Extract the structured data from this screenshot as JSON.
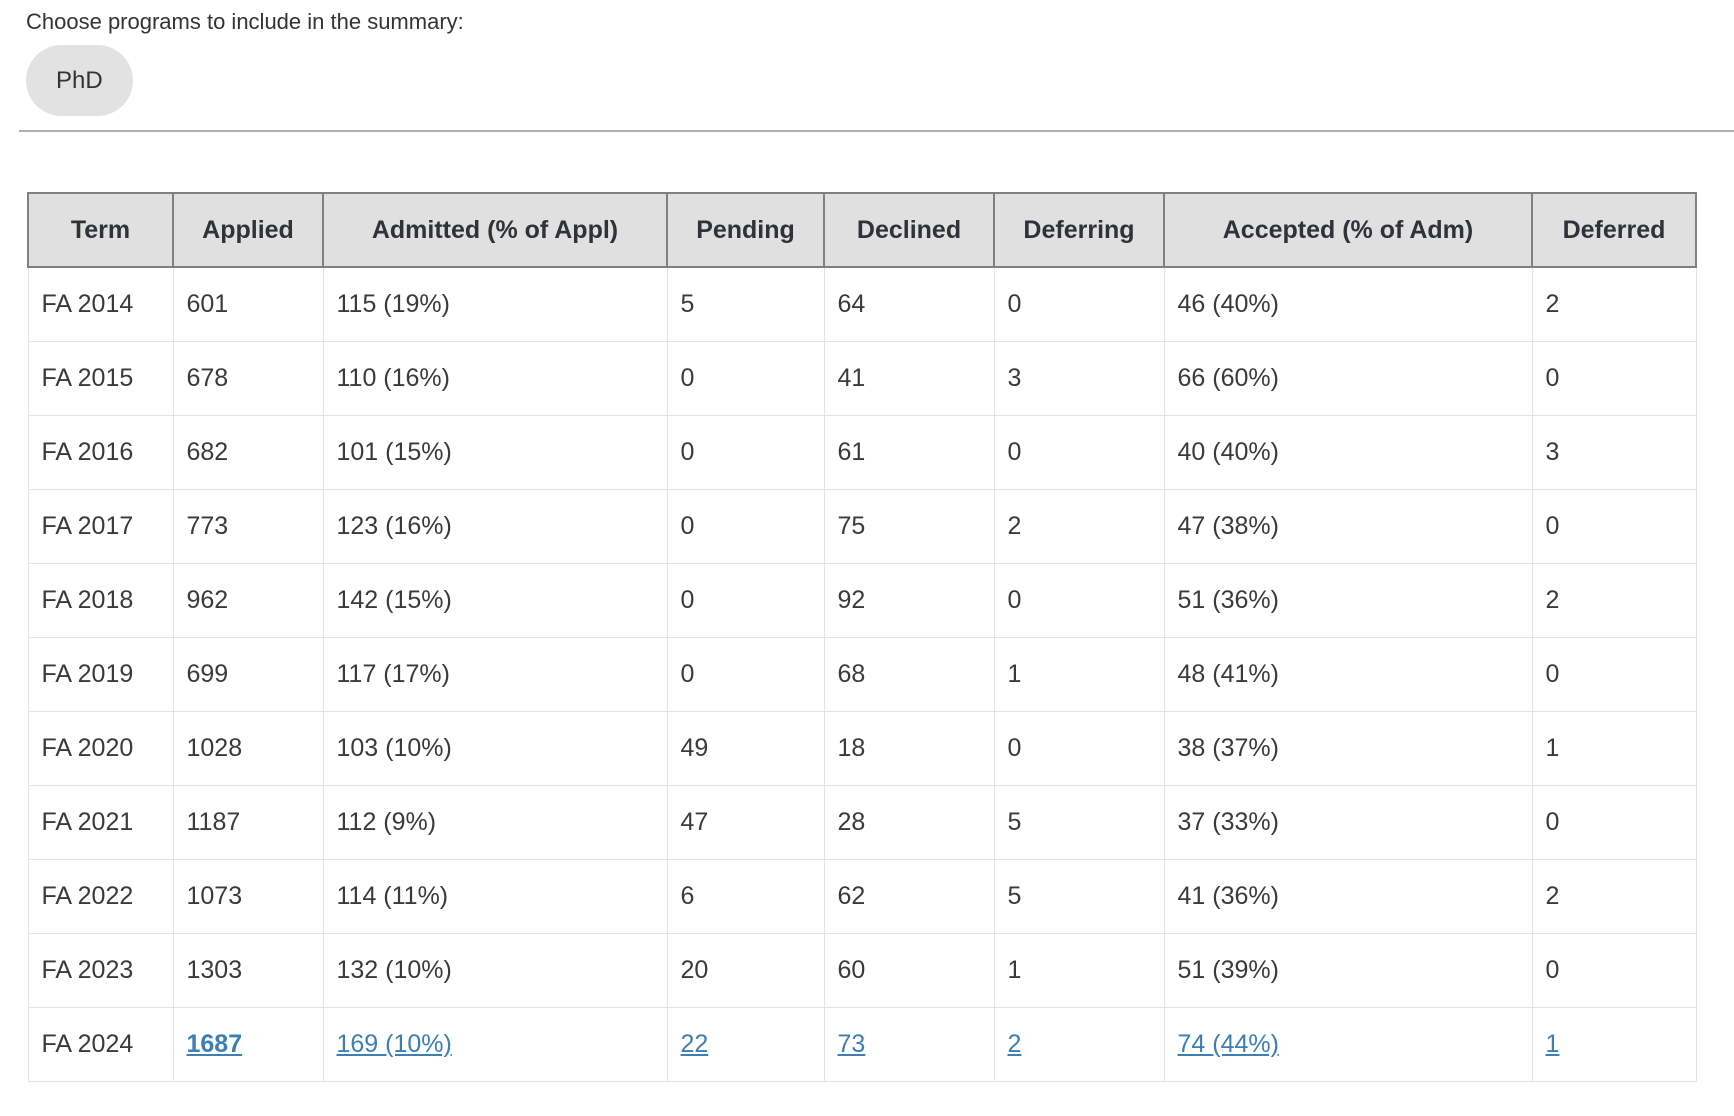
{
  "chooser": {
    "label": "Choose programs to include in the summary:",
    "pills": [
      {
        "label": "PhD",
        "selected": true
      }
    ]
  },
  "colors": {
    "link": "#3d7eb3",
    "header_bg": "#e0e0e0",
    "pill_bg": "#e2e2e2",
    "header_border": "#808080",
    "cell_border": "#e4e4e4"
  },
  "table": {
    "columns": [
      "Term",
      "Applied",
      "Admitted (% of Appl)",
      "Pending",
      "Declined",
      "Deferring",
      "Accepted (% of Adm)",
      "Deferred"
    ],
    "rows": [
      {
        "term": "FA 2014",
        "applied": "601",
        "admitted": "115 (19%)",
        "pending": "5",
        "declined": "64",
        "deferring": "0",
        "accepted": "46 (40%)",
        "deferred": "2",
        "links": false
      },
      {
        "term": "FA 2015",
        "applied": "678",
        "admitted": "110 (16%)",
        "pending": "0",
        "declined": "41",
        "deferring": "3",
        "accepted": "66 (60%)",
        "deferred": "0",
        "links": false
      },
      {
        "term": "FA 2016",
        "applied": "682",
        "admitted": "101 (15%)",
        "pending": "0",
        "declined": "61",
        "deferring": "0",
        "accepted": "40 (40%)",
        "deferred": "3",
        "links": false
      },
      {
        "term": "FA 2017",
        "applied": "773",
        "admitted": "123 (16%)",
        "pending": "0",
        "declined": "75",
        "deferring": "2",
        "accepted": "47 (38%)",
        "deferred": "0",
        "links": false
      },
      {
        "term": "FA 2018",
        "applied": "962",
        "admitted": "142 (15%)",
        "pending": "0",
        "declined": "92",
        "deferring": "0",
        "accepted": "51 (36%)",
        "deferred": "2",
        "links": false
      },
      {
        "term": "FA 2019",
        "applied": "699",
        "admitted": "117 (17%)",
        "pending": "0",
        "declined": "68",
        "deferring": "1",
        "accepted": "48 (41%)",
        "deferred": "0",
        "links": false
      },
      {
        "term": "FA 2020",
        "applied": "1028",
        "admitted": "103 (10%)",
        "pending": "49",
        "declined": "18",
        "deferring": "0",
        "accepted": "38 (37%)",
        "deferred": "1",
        "links": false
      },
      {
        "term": "FA 2021",
        "applied": "1187",
        "admitted": "112 (9%)",
        "pending": "47",
        "declined": "28",
        "deferring": "5",
        "accepted": "37 (33%)",
        "deferred": "0",
        "links": false
      },
      {
        "term": "FA 2022",
        "applied": "1073",
        "admitted": "114 (11%)",
        "pending": "6",
        "declined": "62",
        "deferring": "5",
        "accepted": "41 (36%)",
        "deferred": "2",
        "links": false
      },
      {
        "term": "FA 2023",
        "applied": "1303",
        "admitted": "132 (10%)",
        "pending": "20",
        "declined": "60",
        "deferring": "1",
        "accepted": "51 (39%)",
        "deferred": "0",
        "links": false
      },
      {
        "term": "FA 2024",
        "applied": "1687",
        "admitted": "169 (10%)",
        "pending": "22",
        "declined": "73",
        "deferring": "2",
        "accepted": "74 (44%)",
        "deferred": "1",
        "links": true
      }
    ]
  }
}
